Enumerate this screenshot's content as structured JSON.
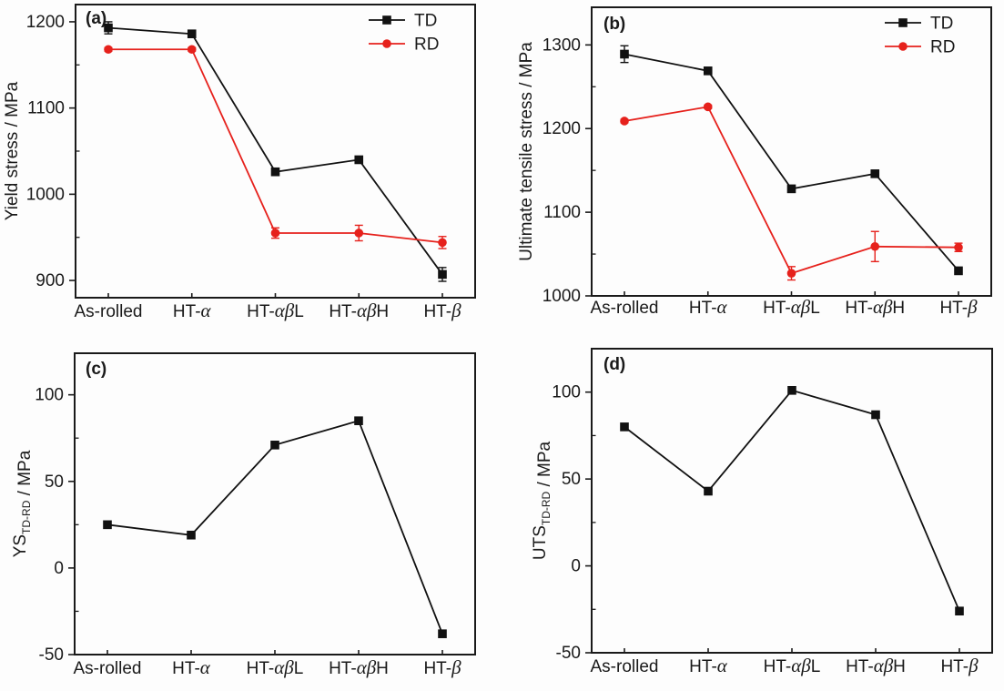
{
  "figure": {
    "background": "#fdfdfd",
    "axis_color": "#1a1a1a",
    "td_color": "#111111",
    "rd_color": "#e6211c"
  },
  "chart_data": [
    {
      "id": "a",
      "type": "line",
      "panel_label": "(a)",
      "ylabel_parts": [
        {
          "t": "Yield stress / MPa"
        }
      ],
      "categories": [
        "As-rolled",
        "HT-α",
        "HT-αβL",
        "HT-αβH",
        "HT-β"
      ],
      "ylim": [
        880,
        1220
      ],
      "yticks": [
        900,
        1000,
        1100,
        1200
      ],
      "yticks_minor": [
        950,
        1050,
        1150
      ],
      "grid": false,
      "legend_position": "top-right",
      "series": [
        {
          "name": "TD",
          "color": "#111111",
          "marker": "square",
          "values": [
            1193,
            1186,
            1026,
            1040,
            907
          ],
          "errors": [
            7,
            3,
            3,
            3,
            8
          ]
        },
        {
          "name": "RD",
          "color": "#e6211c",
          "marker": "circle",
          "values": [
            1168,
            1168,
            955,
            955,
            944
          ],
          "errors": [
            2,
            2,
            6,
            9,
            7
          ]
        }
      ]
    },
    {
      "id": "b",
      "type": "line",
      "panel_label": "(b)",
      "ylabel_parts": [
        {
          "t": "Ultimate tensile stress / MPa"
        }
      ],
      "categories": [
        "As-rolled",
        "HT-α",
        "HT-αβL",
        "HT-αβH",
        "HT-β"
      ],
      "ylim": [
        1000,
        1345
      ],
      "yticks": [
        1000,
        1100,
        1200,
        1300
      ],
      "yticks_minor": [
        1050,
        1150,
        1250
      ],
      "grid": false,
      "legend_position": "top-right",
      "series": [
        {
          "name": "TD",
          "color": "#111111",
          "marker": "square",
          "values": [
            1289,
            1269,
            1128,
            1146,
            1030
          ],
          "errors": [
            10,
            3,
            4,
            4,
            3
          ]
        },
        {
          "name": "RD",
          "color": "#e6211c",
          "marker": "circle",
          "values": [
            1209,
            1226,
            1027,
            1059,
            1058
          ],
          "errors": [
            2,
            2,
            8,
            18,
            5
          ]
        }
      ]
    },
    {
      "id": "c",
      "type": "line",
      "panel_label": "(c)",
      "ylabel_parts": [
        {
          "t": "YS"
        },
        {
          "t": "TD-RD",
          "sub": true
        },
        {
          "t": " / MPa"
        }
      ],
      "categories": [
        "As-rolled",
        "HT-α",
        "HT-αβL",
        "HT-αβH",
        "HT-β"
      ],
      "ylim": [
        -50,
        124
      ],
      "yticks": [
        -50,
        0,
        50,
        100
      ],
      "yticks_minor": [
        -25,
        25,
        75
      ],
      "grid": false,
      "legend_position": "none",
      "series": [
        {
          "name": "YS TD-RD",
          "color": "#111111",
          "marker": "square",
          "values": [
            25,
            19,
            71,
            85,
            -38
          ],
          "errors": [
            0,
            0,
            0,
            0,
            0
          ]
        }
      ]
    },
    {
      "id": "d",
      "type": "line",
      "panel_label": "(d)",
      "ylabel_parts": [
        {
          "t": "UTS"
        },
        {
          "t": "TD-RD",
          "sub": true
        },
        {
          "t": " / MPa"
        }
      ],
      "categories": [
        "As-rolled",
        "HT-α",
        "HT-αβL",
        "HT-αβH",
        "HT-β"
      ],
      "ylim": [
        -50,
        125
      ],
      "yticks": [
        -50,
        0,
        50,
        100
      ],
      "yticks_minor": [
        -25,
        25,
        75
      ],
      "grid": false,
      "legend_position": "none",
      "series": [
        {
          "name": "UTS TD-RD",
          "color": "#111111",
          "marker": "square",
          "values": [
            80,
            43,
            101,
            87,
            -26
          ],
          "errors": [
            0,
            0,
            0,
            0,
            0
          ]
        }
      ]
    }
  ]
}
